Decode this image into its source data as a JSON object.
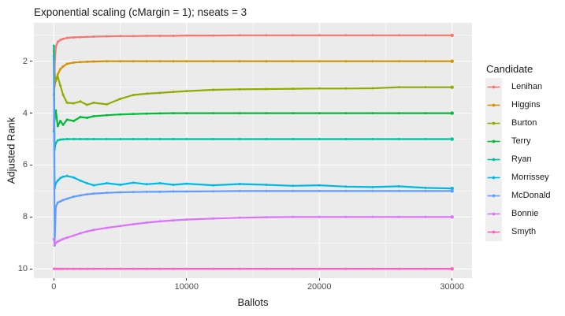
{
  "title": "Exponential scaling (cMargin = 1); nseats = 3",
  "x_axis": {
    "label": "Ballots",
    "ticks": [
      {
        "value": 0,
        "label": "0"
      },
      {
        "value": 10000,
        "label": "10000"
      },
      {
        "value": 20000,
        "label": "20000"
      },
      {
        "value": 30000,
        "label": "30000"
      }
    ]
  },
  "y_axis": {
    "label": "Adjusted Rank",
    "ticks": [
      {
        "value": 2,
        "label": "2"
      },
      {
        "value": 4,
        "label": "4"
      },
      {
        "value": 6,
        "label": "6"
      },
      {
        "value": 8,
        "label": "8"
      },
      {
        "value": 10,
        "label": "10"
      }
    ]
  },
  "legend": {
    "title": "Candidate",
    "items": [
      {
        "label": "Lenihan",
        "color": "#F8766D"
      },
      {
        "label": "Higgins",
        "color": "#D39200"
      },
      {
        "label": "Burton",
        "color": "#93AA00"
      },
      {
        "label": "Terry",
        "color": "#00BA38"
      },
      {
        "label": "Ryan",
        "color": "#00C19F"
      },
      {
        "label": "Morrissey",
        "color": "#00B9E3"
      },
      {
        "label": "McDonald",
        "color": "#619CFF"
      },
      {
        "label": "Bonnie",
        "color": "#DB72FB"
      },
      {
        "label": "Smyth",
        "color": "#FF61C3"
      }
    ]
  },
  "style": {
    "panel_bg": "#EBEBEB",
    "grid_color": "#FFFFFF",
    "tick_text_color": "#4D4D4D",
    "text_color": "#1A1A1A",
    "legend_key_bg": "#EFEFEF"
  },
  "chart_data": {
    "type": "line",
    "title": "Exponential scaling (cMargin = 1); nseats = 3",
    "xlabel": "Ballots",
    "ylabel": "Adjusted Rank",
    "grid": true,
    "legend_position": "right",
    "y_reversed": true,
    "xlim": [
      -1500,
      31500
    ],
    "ylim": [
      0.52,
      10.36
    ],
    "x_major_ticks": [
      0,
      10000,
      20000,
      30000
    ],
    "x_minor_ticks": [
      5000,
      15000,
      25000
    ],
    "y_major_ticks": [
      2,
      4,
      6,
      8,
      10
    ],
    "y_minor_ticks": [
      1,
      3,
      5,
      7,
      9
    ],
    "x": [
      0,
      60,
      150,
      300,
      500,
      700,
      1000,
      1500,
      2000,
      2500,
      3000,
      4000,
      5000,
      6000,
      7000,
      8000,
      9000,
      10000,
      12000,
      14000,
      16000,
      18000,
      20000,
      22000,
      24000,
      26000,
      28000,
      30000
    ],
    "series": [
      {
        "name": "Lenihan",
        "color": "#F8766D",
        "values": [
          4.6,
          2.2,
          1.45,
          1.25,
          1.18,
          1.14,
          1.1,
          1.08,
          1.07,
          1.06,
          1.05,
          1.04,
          1.03,
          1.03,
          1.02,
          1.02,
          1.02,
          1.01,
          1.01,
          1.0,
          1.0,
          1.0,
          1.0,
          1.0,
          1.0,
          1.0,
          1.0,
          1.0
        ]
      },
      {
        "name": "Higgins",
        "color": "#D39200",
        "values": [
          3.3,
          2.95,
          2.75,
          2.5,
          2.3,
          2.2,
          2.1,
          2.05,
          2.03,
          2.02,
          2.01,
          2.0,
          2.0,
          2.0,
          2.0,
          2.0,
          2.0,
          2.0,
          2.0,
          2.0,
          2.0,
          2.0,
          2.0,
          2.0,
          2.0,
          2.0,
          2.0,
          2.0
        ]
      },
      {
        "name": "Burton",
        "color": "#93AA00",
        "values": [
          1.6,
          2.5,
          2.75,
          2.6,
          2.95,
          3.3,
          3.6,
          3.62,
          3.55,
          3.68,
          3.6,
          3.66,
          3.45,
          3.3,
          3.25,
          3.22,
          3.18,
          3.15,
          3.1,
          3.08,
          3.07,
          3.06,
          3.05,
          3.05,
          3.04,
          3.0,
          3.0,
          3.0
        ]
      },
      {
        "name": "Terry",
        "color": "#00BA38",
        "values": [
          4.7,
          4.2,
          3.9,
          4.5,
          4.3,
          4.45,
          4.25,
          4.3,
          4.15,
          4.18,
          4.12,
          4.08,
          4.05,
          4.03,
          4.02,
          4.01,
          4.0,
          4.0,
          4.0,
          4.0,
          4.0,
          4.0,
          4.0,
          4.0,
          4.0,
          4.0,
          4.0,
          4.0
        ]
      },
      {
        "name": "Ryan",
        "color": "#00C19F",
        "values": [
          1.4,
          5.4,
          5.15,
          5.05,
          5.02,
          5.01,
          5.0,
          5.0,
          5.0,
          5.0,
          5.0,
          5.0,
          5.0,
          5.0,
          5.0,
          5.0,
          5.0,
          5.0,
          5.0,
          5.0,
          5.0,
          5.0,
          5.0,
          5.0,
          5.0,
          5.0,
          5.0,
          5.0
        ]
      },
      {
        "name": "Morrissey",
        "color": "#00B9E3",
        "values": [
          1.8,
          6.9,
          6.7,
          6.6,
          6.5,
          6.45,
          6.42,
          6.48,
          6.6,
          6.7,
          6.78,
          6.7,
          6.76,
          6.68,
          6.74,
          6.7,
          6.76,
          6.72,
          6.78,
          6.73,
          6.76,
          6.8,
          6.78,
          6.83,
          6.85,
          6.82,
          6.88,
          6.9
        ]
      },
      {
        "name": "McDonald",
        "color": "#619CFF",
        "values": [
          2.0,
          9.1,
          7.6,
          7.45,
          7.4,
          7.35,
          7.3,
          7.22,
          7.17,
          7.13,
          7.1,
          7.07,
          7.05,
          7.04,
          7.03,
          7.03,
          7.02,
          7.02,
          7.01,
          7.0,
          7.0,
          7.0,
          7.0,
          7.0,
          7.0,
          7.0,
          7.0,
          7.0
        ]
      },
      {
        "name": "Bonnie",
        "color": "#DB72FB",
        "values": [
          8.85,
          9.05,
          9.0,
          8.95,
          8.9,
          8.85,
          8.8,
          8.72,
          8.63,
          8.56,
          8.5,
          8.42,
          8.35,
          8.28,
          8.22,
          8.17,
          8.13,
          8.1,
          8.06,
          8.03,
          8.01,
          8.0,
          8.0,
          8.0,
          8.0,
          8.0,
          8.0,
          8.0
        ]
      },
      {
        "name": "Smyth",
        "color": "#FF61C3",
        "values": [
          10.0,
          10.0,
          10.0,
          10.0,
          10.0,
          10.0,
          10.0,
          10.0,
          10.0,
          10.0,
          10.0,
          10.0,
          10.0,
          10.0,
          10.0,
          10.0,
          10.0,
          10.0,
          10.0,
          10.0,
          10.0,
          10.0,
          10.0,
          10.0,
          10.0,
          10.0,
          10.0,
          10.0
        ]
      }
    ]
  }
}
